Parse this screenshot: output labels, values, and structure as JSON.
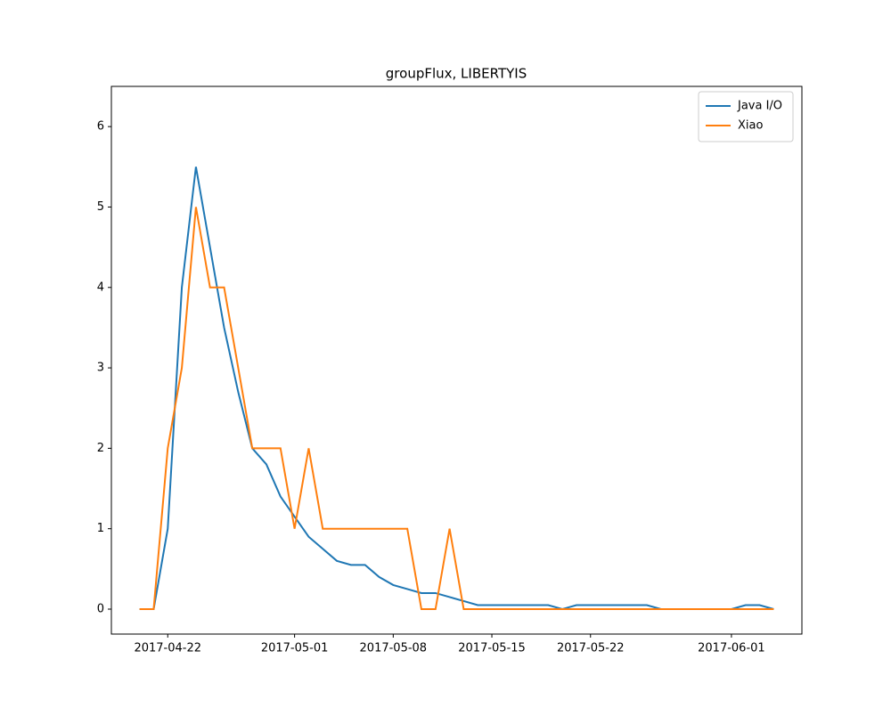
{
  "chart_data": {
    "type": "line",
    "title": "groupFlux, LIBERTYIS",
    "x": [
      "2017-04-20",
      "2017-04-21",
      "2017-04-22",
      "2017-04-23",
      "2017-04-24",
      "2017-04-25",
      "2017-04-26",
      "2017-04-27",
      "2017-04-28",
      "2017-04-29",
      "2017-04-30",
      "2017-05-01",
      "2017-05-02",
      "2017-05-03",
      "2017-05-04",
      "2017-05-05",
      "2017-05-06",
      "2017-05-07",
      "2017-05-08",
      "2017-05-09",
      "2017-05-10",
      "2017-05-11",
      "2017-05-12",
      "2017-05-13",
      "2017-05-14",
      "2017-05-15",
      "2017-05-16",
      "2017-05-17",
      "2017-05-18",
      "2017-05-19",
      "2017-05-20",
      "2017-05-21",
      "2017-05-22",
      "2017-05-23",
      "2017-05-24",
      "2017-05-25",
      "2017-05-26",
      "2017-05-27",
      "2017-05-28",
      "2017-05-29",
      "2017-05-30",
      "2017-05-31",
      "2017-06-01",
      "2017-06-02",
      "2017-06-03",
      "2017-06-04"
    ],
    "series": [
      {
        "name": "Java I/O",
        "color": "#1f77b4",
        "values": [
          0,
          0,
          1.0,
          4.0,
          5.5,
          4.5,
          3.5,
          2.7,
          2.0,
          1.8,
          1.4,
          1.15,
          0.9,
          0.75,
          0.6,
          0.55,
          0.55,
          0.4,
          0.3,
          0.25,
          0.2,
          0.2,
          0.15,
          0.1,
          0.05,
          0.05,
          0.05,
          0.05,
          0.05,
          0.05,
          0,
          0.05,
          0.05,
          0.05,
          0.05,
          0.05,
          0.05,
          0,
          0,
          0,
          0,
          0,
          0,
          0.05,
          0.05,
          0
        ]
      },
      {
        "name": "Xiao",
        "color": "#ff7f0e",
        "values": [
          0,
          0,
          2,
          3,
          5,
          4,
          4,
          3,
          2,
          2,
          2,
          1,
          2,
          1,
          1,
          1,
          1,
          1,
          1,
          1,
          0,
          0,
          1,
          0,
          0,
          0,
          0,
          0,
          0,
          0,
          0,
          0,
          0,
          0,
          0,
          0,
          0,
          0,
          0,
          0,
          0,
          0,
          0,
          0,
          0,
          0
        ]
      }
    ],
    "xlim": [
      "2017-04-18",
      "2017-06-06"
    ],
    "xticks": [
      "2017-04-22",
      "2017-05-01",
      "2017-05-08",
      "2017-05-15",
      "2017-05-22",
      "2017-06-01"
    ],
    "ylim": [
      -0.31,
      6.5
    ],
    "yticks": [
      0,
      1,
      2,
      3,
      4,
      5,
      6
    ],
    "legend": "upper right"
  }
}
